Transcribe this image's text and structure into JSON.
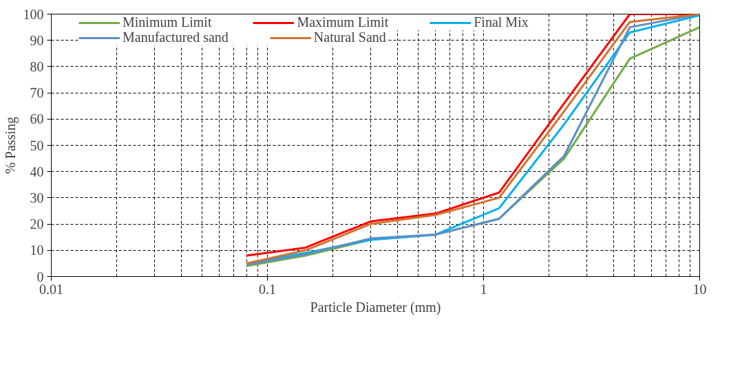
{
  "chart_data": {
    "type": "line",
    "xlabel": "Particle Diameter (mm)",
    "ylabel": "% Passing",
    "log": "x",
    "x": [
      0.08,
      0.15,
      0.3,
      0.6,
      1.18,
      2.36,
      4.75,
      10
    ],
    "series": [
      {
        "name": "Minimum Limit",
        "color": "#70ad47",
        "values": [
          4,
          8,
          14,
          16,
          22,
          45,
          83,
          95
        ]
      },
      {
        "name": "Maximum Limit",
        "color": "#ff0000",
        "values": [
          8,
          11,
          21,
          24,
          32,
          66,
          100,
          100
        ]
      },
      {
        "name": "Final Mix",
        "color": "#00b0f0",
        "values": [
          5,
          9,
          14,
          16,
          26,
          58,
          93,
          99.5
        ]
      },
      {
        "name": "Manufactured sand",
        "color": "#5b8fc7",
        "values": [
          4.5,
          8.5,
          14.5,
          16,
          22,
          46,
          95,
          100
        ]
      },
      {
        "name": "Natural Sand",
        "color": "#d2722e",
        "values": [
          5,
          10,
          20,
          23.5,
          30,
          63,
          97,
          100
        ]
      }
    ],
    "xlim": [
      0.01,
      10
    ],
    "xticks": [
      0.01,
      0.1,
      1,
      10
    ],
    "ylim": [
      0,
      100
    ],
    "yticks": [
      0,
      10,
      20,
      30,
      40,
      50,
      60,
      70,
      80,
      90,
      100
    ],
    "grid": true,
    "legend": "top",
    "marker": "none",
    "line_style": "solid"
  }
}
